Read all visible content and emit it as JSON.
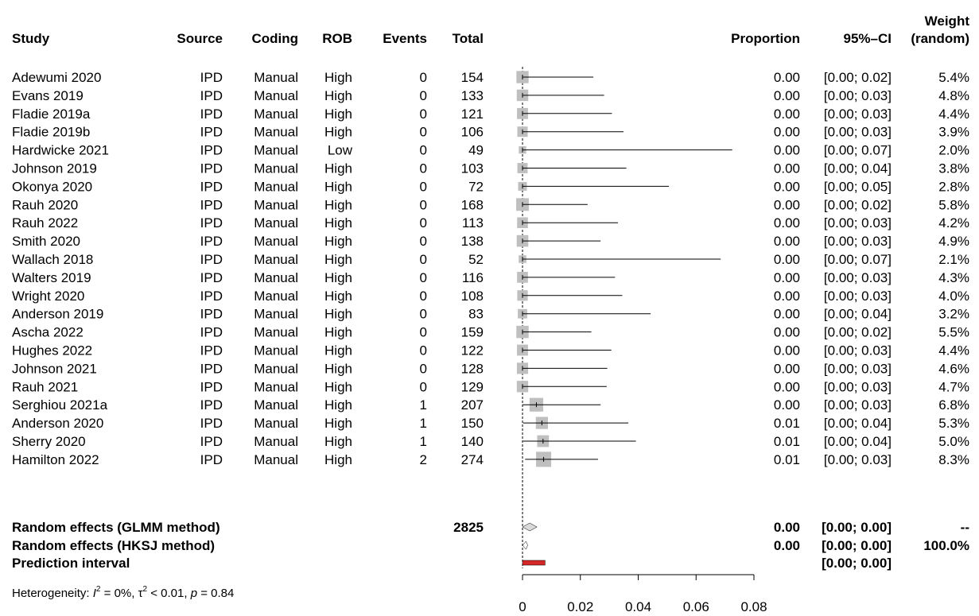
{
  "header": {
    "study": "Study",
    "source": "Source",
    "coding": "Coding",
    "rob": "ROB",
    "events": "Events",
    "total": "Total",
    "proportion": "Proportion",
    "ci": "95%–CI",
    "weight_line1": "Weight",
    "weight_line2": "(random)"
  },
  "summary": [
    {
      "label": "Random effects (GLMM method)",
      "total": "2825",
      "prop": "0.00",
      "ci": "[0.00; 0.00]",
      "weight": "--",
      "est": 0.0025,
      "lo": 0.0,
      "hi": 0.0035
    },
    {
      "label": "Random effects (HKSJ method)",
      "total": "",
      "prop": "0.00",
      "ci": "[0.00; 0.00]",
      "weight": "100.0%",
      "est": 0.0012,
      "lo": 0.0,
      "hi": 0.0018
    },
    {
      "label": "Prediction interval",
      "total": "",
      "prop": "",
      "ci": "[0.00; 0.00]",
      "weight": "",
      "lo": 0.0,
      "hi": 0.0045
    }
  ],
  "heterogeneity": {
    "prefix": "Heterogeneity: ",
    "i2_symbol": "I",
    "i2_value": " = 0%, ",
    "tau_symbol": "τ",
    "tau_value": " < 0.01, ",
    "p_symbol": "p",
    "p_value": " = 0.84",
    "superscript": "2"
  },
  "colors": {
    "box": "#bfbfbf",
    "diamond_glmm": "#d9d9d9",
    "diamond_hksj": "#ffffff",
    "prediction": "#d62728",
    "line": "#000000"
  },
  "chart_data": {
    "type": "forest",
    "xlim": [
      0,
      0.08
    ],
    "x_ticks": [
      0,
      0.02,
      0.04,
      0.06,
      0.08
    ],
    "x_tick_labels": [
      "0",
      "0.02",
      "0.04",
      "0.06",
      "0.08"
    ],
    "reference_line": 0.0,
    "studies": [
      {
        "study": "Adewumi 2020",
        "source": "IPD",
        "coding": "Manual",
        "rob": "High",
        "events": 0,
        "total": 154,
        "prop": "0.00",
        "ci": "[0.00; 0.02]",
        "weight": "5.4%",
        "est": 0.0,
        "lo": 0.0,
        "hi": 0.0245,
        "w": 5.4
      },
      {
        "study": "Evans 2019",
        "source": "IPD",
        "coding": "Manual",
        "rob": "High",
        "events": 0,
        "total": 133,
        "prop": "0.00",
        "ci": "[0.00; 0.03]",
        "weight": "4.8%",
        "est": 0.0,
        "lo": 0.0,
        "hi": 0.0282,
        "w": 4.8
      },
      {
        "study": "Fladie 2019a",
        "source": "IPD",
        "coding": "Manual",
        "rob": "High",
        "events": 0,
        "total": 121,
        "prop": "0.00",
        "ci": "[0.00; 0.03]",
        "weight": "4.4%",
        "est": 0.0,
        "lo": 0.0,
        "hi": 0.0309,
        "w": 4.4
      },
      {
        "study": "Fladie 2019b",
        "source": "IPD",
        "coding": "Manual",
        "rob": "High",
        "events": 0,
        "total": 106,
        "prop": "0.00",
        "ci": "[0.00; 0.03]",
        "weight": "3.9%",
        "est": 0.0,
        "lo": 0.0,
        "hi": 0.0349,
        "w": 3.9
      },
      {
        "study": "Hardwicke 2021",
        "source": "IPD",
        "coding": "Manual",
        "rob": "Low",
        "events": 0,
        "total": 49,
        "prop": "0.00",
        "ci": "[0.00; 0.07]",
        "weight": "2.0%",
        "est": 0.0,
        "lo": 0.0,
        "hi": 0.0725,
        "w": 2.0
      },
      {
        "study": "Johnson 2019",
        "source": "IPD",
        "coding": "Manual",
        "rob": "High",
        "events": 0,
        "total": 103,
        "prop": "0.00",
        "ci": "[0.00; 0.04]",
        "weight": "3.8%",
        "est": 0.0,
        "lo": 0.0,
        "hi": 0.0359,
        "w": 3.8
      },
      {
        "study": "Okonya 2020",
        "source": "IPD",
        "coding": "Manual",
        "rob": "High",
        "events": 0,
        "total": 72,
        "prop": "0.00",
        "ci": "[0.00; 0.05]",
        "weight": "2.8%",
        "est": 0.0,
        "lo": 0.0,
        "hi": 0.0506,
        "w": 2.8
      },
      {
        "study": "Rauh 2020",
        "source": "IPD",
        "coding": "Manual",
        "rob": "High",
        "events": 0,
        "total": 168,
        "prop": "0.00",
        "ci": "[0.00; 0.02]",
        "weight": "5.8%",
        "est": 0.0,
        "lo": 0.0,
        "hi": 0.0225,
        "w": 5.8
      },
      {
        "study": "Rauh 2022",
        "source": "IPD",
        "coding": "Manual",
        "rob": "High",
        "events": 0,
        "total": 113,
        "prop": "0.00",
        "ci": "[0.00; 0.03]",
        "weight": "4.2%",
        "est": 0.0,
        "lo": 0.0,
        "hi": 0.033,
        "w": 4.2
      },
      {
        "study": "Smith 2020",
        "source": "IPD",
        "coding": "Manual",
        "rob": "High",
        "events": 0,
        "total": 138,
        "prop": "0.00",
        "ci": "[0.00; 0.03]",
        "weight": "4.9%",
        "est": 0.0,
        "lo": 0.0,
        "hi": 0.027,
        "w": 4.9
      },
      {
        "study": "Wallach 2018",
        "source": "IPD",
        "coding": "Manual",
        "rob": "High",
        "events": 0,
        "total": 52,
        "prop": "0.00",
        "ci": "[0.00; 0.07]",
        "weight": "2.1%",
        "est": 0.0,
        "lo": 0.0,
        "hi": 0.0685,
        "w": 2.1
      },
      {
        "study": "Walters 2019",
        "source": "IPD",
        "coding": "Manual",
        "rob": "High",
        "events": 0,
        "total": 116,
        "prop": "0.00",
        "ci": "[0.00; 0.03]",
        "weight": "4.3%",
        "est": 0.0,
        "lo": 0.0,
        "hi": 0.032,
        "w": 4.3
      },
      {
        "study": "Wright 2020",
        "source": "IPD",
        "coding": "Manual",
        "rob": "High",
        "events": 0,
        "total": 108,
        "prop": "0.00",
        "ci": "[0.00; 0.03]",
        "weight": "4.0%",
        "est": 0.0,
        "lo": 0.0,
        "hi": 0.0345,
        "w": 4.0
      },
      {
        "study": "Anderson 2019",
        "source": "IPD",
        "coding": "Manual",
        "rob": "High",
        "events": 0,
        "total": 83,
        "prop": "0.00",
        "ci": "[0.00; 0.04]",
        "weight": "3.2%",
        "est": 0.0,
        "lo": 0.0,
        "hi": 0.0443,
        "w": 3.2
      },
      {
        "study": "Ascha 2022",
        "source": "IPD",
        "coding": "Manual",
        "rob": "High",
        "events": 0,
        "total": 159,
        "prop": "0.00",
        "ci": "[0.00; 0.02]",
        "weight": "5.5%",
        "est": 0.0,
        "lo": 0.0,
        "hi": 0.0238,
        "w": 5.5
      },
      {
        "study": "Hughes 2022",
        "source": "IPD",
        "coding": "Manual",
        "rob": "High",
        "events": 0,
        "total": 122,
        "prop": "0.00",
        "ci": "[0.00; 0.03]",
        "weight": "4.4%",
        "est": 0.0,
        "lo": 0.0,
        "hi": 0.0307,
        "w": 4.4
      },
      {
        "study": "Johnson 2021",
        "source": "IPD",
        "coding": "Manual",
        "rob": "High",
        "events": 0,
        "total": 128,
        "prop": "0.00",
        "ci": "[0.00; 0.03]",
        "weight": "4.6%",
        "est": 0.0,
        "lo": 0.0,
        "hi": 0.0293,
        "w": 4.6
      },
      {
        "study": "Rauh 2021",
        "source": "IPD",
        "coding": "Manual",
        "rob": "High",
        "events": 0,
        "total": 129,
        "prop": "0.00",
        "ci": "[0.00; 0.03]",
        "weight": "4.7%",
        "est": 0.0,
        "lo": 0.0,
        "hi": 0.0291,
        "w": 4.7
      },
      {
        "study": "Serghiou 2021a",
        "source": "IPD",
        "coding": "Manual",
        "rob": "High",
        "events": 1,
        "total": 207,
        "prop": "0.00",
        "ci": "[0.00; 0.03]",
        "weight": "6.8%",
        "est": 0.0048,
        "lo": 0.0001,
        "hi": 0.027,
        "w": 6.8
      },
      {
        "study": "Anderson 2020",
        "source": "IPD",
        "coding": "Manual",
        "rob": "High",
        "events": 1,
        "total": 150,
        "prop": "0.01",
        "ci": "[0.00; 0.04]",
        "weight": "5.3%",
        "est": 0.0067,
        "lo": 0.0002,
        "hi": 0.0366,
        "w": 5.3
      },
      {
        "study": "Sherry 2020",
        "source": "IPD",
        "coding": "Manual",
        "rob": "High",
        "events": 1,
        "total": 140,
        "prop": "0.01",
        "ci": "[0.00; 0.04]",
        "weight": "5.0%",
        "est": 0.0071,
        "lo": 0.0002,
        "hi": 0.0392,
        "w": 5.0
      },
      {
        "study": "Hamilton 2022",
        "source": "IPD",
        "coding": "Manual",
        "rob": "High",
        "events": 2,
        "total": 274,
        "prop": "0.01",
        "ci": "[0.00; 0.03]",
        "weight": "8.3%",
        "est": 0.0073,
        "lo": 0.0009,
        "hi": 0.0261,
        "w": 8.3
      }
    ]
  }
}
